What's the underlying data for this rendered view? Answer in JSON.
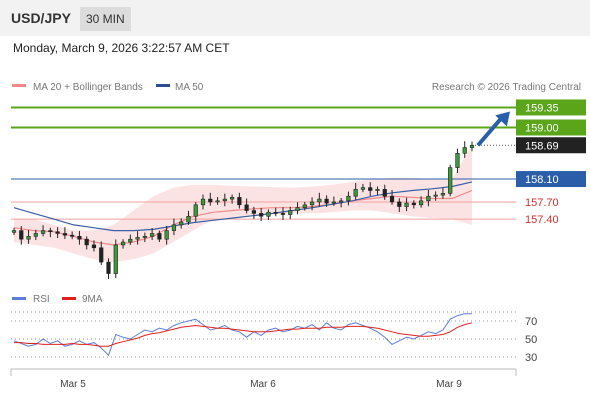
{
  "header": {
    "symbol": "USD/JPY",
    "timeframe": "30 MIN"
  },
  "datetime": "Monday, March 9, 2026 3:22:57 AM CET",
  "legend": {
    "items": [
      {
        "label": "MA 20 + Bollinger Bands",
        "color": "#f08a8a"
      },
      {
        "label": "MA 50",
        "color": "#2a4f8f"
      }
    ],
    "source": "Research © 2026 Trading Central"
  },
  "rsi_legend": [
    {
      "label": "RSI",
      "color": "#5b7fd6"
    },
    {
      "label": "9MA",
      "color": "#e02020"
    }
  ],
  "chart_data": {
    "type": "candlestick",
    "x_labels": [
      "Mar 5",
      "Mar 6",
      "Mar 9"
    ],
    "ylim": [
      156.25,
      159.55
    ],
    "current_price": 158.69,
    "levels": [
      {
        "value": 159.35,
        "label": "159.35",
        "kind": "resistance"
      },
      {
        "value": 159.0,
        "label": "159.00",
        "kind": "resistance"
      },
      {
        "value": 158.1,
        "label": "158.10",
        "kind": "pivot"
      },
      {
        "value": 157.7,
        "label": "157.70",
        "kind": "support"
      },
      {
        "value": 157.4,
        "label": "157.40",
        "kind": "support"
      }
    ],
    "close_series": [
      157.2,
      157.05,
      157.1,
      157.15,
      157.2,
      157.18,
      157.15,
      157.12,
      157.1,
      157.05,
      156.95,
      156.9,
      156.65,
      156.45,
      156.95,
      157.0,
      157.05,
      157.08,
      157.1,
      157.15,
      157.05,
      157.2,
      157.3,
      157.35,
      157.45,
      157.65,
      157.75,
      157.7,
      157.72,
      157.75,
      157.78,
      157.65,
      157.55,
      157.5,
      157.45,
      157.52,
      157.5,
      157.48,
      157.55,
      157.6,
      157.65,
      157.7,
      157.75,
      157.68,
      157.7,
      157.72,
      157.8,
      157.92,
      157.95,
      157.9,
      157.92,
      157.8,
      157.7,
      157.62,
      157.68,
      157.65,
      157.72,
      157.8,
      157.82,
      157.85,
      158.3,
      158.55,
      158.65,
      158.69
    ],
    "ma20": [
      157.25,
      157.2,
      157.18,
      157.1,
      157.0,
      156.95,
      157.0,
      157.1,
      157.3,
      157.45,
      157.52,
      157.55,
      157.58,
      157.6,
      157.6,
      157.62,
      157.66,
      157.72,
      157.76,
      157.8,
      157.78,
      157.76,
      157.76,
      157.9
    ],
    "ma50": [
      157.6,
      157.5,
      157.4,
      157.3,
      157.25,
      157.2,
      157.2,
      157.22,
      157.28,
      157.34,
      157.38,
      157.42,
      157.46,
      157.5,
      157.55,
      157.6,
      157.66,
      157.72,
      157.8,
      157.86,
      157.9,
      157.93,
      157.97,
      158.05
    ],
    "bb_upper": [
      157.4,
      157.4,
      157.3,
      157.2,
      157.2,
      157.3,
      157.55,
      157.8,
      157.95,
      158.0,
      158.0,
      157.98,
      157.97,
      157.96,
      157.95,
      157.97,
      158.0,
      158.05,
      158.1,
      158.12,
      158.12,
      158.1,
      158.1,
      158.7
    ],
    "bb_lower": [
      157.0,
      156.95,
      156.9,
      156.8,
      156.7,
      156.65,
      156.7,
      156.8,
      157.0,
      157.2,
      157.4,
      157.42,
      157.45,
      157.48,
      157.5,
      157.5,
      157.52,
      157.55,
      157.55,
      157.5,
      157.45,
      157.42,
      157.4,
      157.3
    ],
    "rsi": {
      "ticks": [
        30,
        50,
        70
      ],
      "ylim": [
        20,
        80
      ],
      "rsi_values": [
        48,
        45,
        42,
        44,
        50,
        45,
        48,
        42,
        44,
        48,
        44,
        46,
        40,
        32,
        55,
        52,
        50,
        55,
        60,
        58,
        62,
        60,
        65,
        68,
        70,
        72,
        66,
        60,
        62,
        65,
        60,
        58,
        52,
        58,
        54,
        60,
        62,
        58,
        60,
        64,
        62,
        66,
        60,
        68,
        62,
        60,
        66,
        68,
        65,
        62,
        58,
        52,
        44,
        48,
        52,
        50,
        54,
        58,
        56,
        60,
        72,
        76,
        78,
        78
      ],
      "ma_values": [
        46,
        46,
        45,
        45,
        44,
        44,
        44,
        44,
        45,
        44,
        44,
        43,
        42,
        42,
        45,
        47,
        49,
        51,
        54,
        56,
        57,
        59,
        61,
        63,
        64,
        65,
        64,
        63,
        62,
        62,
        61,
        60,
        59,
        58,
        58,
        58,
        59,
        60,
        61,
        61,
        62,
        62,
        62,
        63,
        63,
        63,
        64,
        64,
        64,
        63,
        62,
        60,
        58,
        56,
        55,
        54,
        53,
        53,
        54,
        55,
        58,
        63,
        66,
        68
      ]
    }
  }
}
